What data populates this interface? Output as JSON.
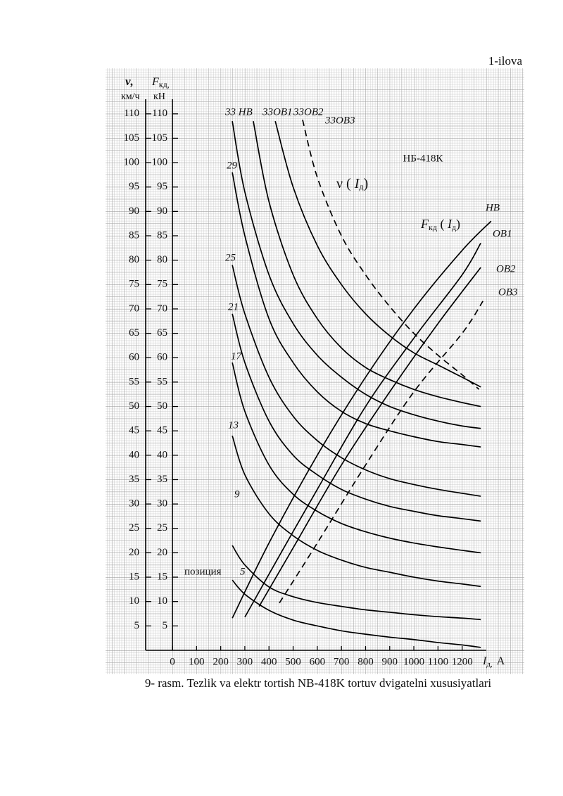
{
  "header": {
    "annex": "1-ilova"
  },
  "caption": "9- rasm. Tezlik va elektr tortish NB-418K tortuv dvigatelni xususiyatlari",
  "chart_data": {
    "type": "line",
    "title": "НБ-418К",
    "ylabel": {
      "symbol": "ν,",
      "unit": "км/ч"
    },
    "y2label": {
      "symbol": "F",
      "sub": "кд,",
      "unit": "кН"
    },
    "xlabel": {
      "symbol": "I",
      "sub": "д,",
      "unit": "A"
    },
    "v_curve_label": {
      "pre": "ν ( ",
      "symbol": "I",
      "sub": "д",
      "post": ")"
    },
    "f_curve_label": {
      "symbol": "F",
      "sub1": "кд",
      "mid": " ( ",
      "symbol2": "I",
      "sub2": "д",
      "post": ")"
    },
    "position_label": "позиция",
    "xlim": [
      0,
      1300
    ],
    "xticks": [
      0,
      100,
      200,
      300,
      400,
      500,
      600,
      700,
      800,
      900,
      1000,
      1100,
      1200
    ],
    "ylim": [
      0,
      113
    ],
    "yticks": [
      5,
      10,
      15,
      20,
      25,
      30,
      35,
      40,
      45,
      50,
      55,
      60,
      65,
      70,
      75,
      80,
      85,
      90,
      95,
      100,
      105,
      110
    ],
    "y2lim": [
      0,
      113
    ],
    "y2ticks": [
      5,
      10,
      15,
      20,
      25,
      30,
      35,
      40,
      45,
      50,
      55,
      60,
      65,
      70,
      75,
      80,
      85,
      90,
      95,
      100,
      105,
      110
    ],
    "grid": true,
    "series": [
      {
        "name": "5",
        "color": "#000",
        "dash": false,
        "x": [
          248,
          300,
          400,
          500,
          600,
          700,
          800,
          900,
          1000,
          1100,
          1200,
          1277
        ],
        "values": [
          14.4,
          11.5,
          8.2,
          6.2,
          5,
          4,
          3.3,
          2.7,
          2.2,
          1.6,
          1.1,
          0.6
        ]
      },
      {
        "name": "9",
        "color": "#000",
        "dash": false,
        "x": [
          248,
          300,
          400,
          500,
          600,
          700,
          800,
          900,
          1000,
          1100,
          1200,
          1277
        ],
        "values": [
          21.5,
          17.5,
          13,
          11,
          9.8,
          9,
          8.3,
          7.8,
          7.3,
          6.9,
          6.6,
          6.3
        ]
      },
      {
        "name": "13",
        "color": "#000",
        "dash": false,
        "x": [
          248,
          300,
          400,
          500,
          600,
          700,
          800,
          900,
          1000,
          1100,
          1200,
          1277
        ],
        "values": [
          44,
          36,
          28,
          23.5,
          20.5,
          18.5,
          17,
          16,
          15,
          14.2,
          13.6,
          13.1
        ]
      },
      {
        "name": "17",
        "color": "#000",
        "dash": false,
        "x": [
          248,
          300,
          400,
          500,
          600,
          700,
          800,
          900,
          1000,
          1100,
          1200,
          1277
        ],
        "values": [
          59,
          49,
          38,
          32,
          28.5,
          26,
          24.3,
          23,
          22,
          21.2,
          20.5,
          20
        ]
      },
      {
        "name": "21",
        "color": "#000",
        "dash": false,
        "x": [
          248,
          300,
          400,
          500,
          600,
          700,
          800,
          900,
          1000,
          1100,
          1200,
          1277
        ],
        "values": [
          69,
          59,
          47,
          40,
          36,
          33,
          31,
          29.5,
          28.5,
          27.6,
          27,
          26.5
        ]
      },
      {
        "name": "25",
        "color": "#000",
        "dash": false,
        "x": [
          248,
          300,
          400,
          500,
          600,
          700,
          800,
          900,
          1000,
          1100,
          1200,
          1277
        ],
        "values": [
          79,
          69,
          56,
          48,
          43,
          39.5,
          37,
          35.2,
          34,
          33,
          32.2,
          31.6
        ]
      },
      {
        "name": "29",
        "color": "#000",
        "dash": false,
        "x": [
          248,
          300,
          400,
          500,
          600,
          700,
          800,
          900,
          1000,
          1100,
          1200,
          1277
        ],
        "values": [
          98,
          85,
          68,
          59,
          53,
          49,
          46.5,
          45,
          43.8,
          42.8,
          42.2,
          41.7
        ]
      },
      {
        "name": "33 НВ",
        "color": "#000",
        "dash": false,
        "x": [
          248,
          300,
          400,
          500,
          600,
          700,
          800,
          900,
          1000,
          1100,
          1200,
          1277
        ],
        "values": [
          108.5,
          94,
          77,
          67,
          60.5,
          56,
          52.5,
          50,
          48.3,
          47,
          46,
          45.5
        ]
      },
      {
        "name": "33ОВ1",
        "color": "#000",
        "dash": false,
        "x": [
          335,
          400,
          500,
          600,
          700,
          800,
          900,
          1000,
          1100,
          1200,
          1277
        ],
        "values": [
          108.5,
          92,
          77,
          68,
          62,
          58,
          55.5,
          53.5,
          52,
          50.8,
          50
        ]
      },
      {
        "name": "33ОВ2",
        "color": "#000",
        "dash": false,
        "x": [
          426,
          500,
          600,
          700,
          800,
          900,
          1000,
          1100,
          1200,
          1277
        ],
        "values": [
          108.5,
          95,
          83,
          75,
          69,
          64.5,
          61,
          58.5,
          56,
          54
        ]
      },
      {
        "name": "33ОВ3",
        "color": "#000",
        "dash": true,
        "x": [
          539,
          600,
          700,
          800,
          900,
          1000,
          1100,
          1200,
          1270
        ],
        "values": [
          108.8,
          97,
          85,
          77,
          70.5,
          65,
          60.5,
          56.5,
          53.5
        ]
      },
      {
        "name": "НВ",
        "color": "#000",
        "dash": false,
        "axis": "y2",
        "x": [
          248,
          400,
          600,
          800,
          1000,
          1200,
          1320
        ],
        "values": [
          6.6,
          22,
          40,
          56,
          70,
          82,
          88
        ]
      },
      {
        "name": "ОВ1",
        "color": "#000",
        "dash": false,
        "axis": "y2",
        "x": [
          300,
          450,
          600,
          800,
          1000,
          1200,
          1277
        ],
        "values": [
          6.8,
          20,
          33,
          50,
          64,
          77,
          83.5
        ]
      },
      {
        "name": "ОВ2",
        "color": "#000",
        "dash": false,
        "axis": "y2",
        "x": [
          359,
          500,
          700,
          900,
          1100,
          1277
        ],
        "values": [
          9,
          21,
          38,
          53,
          67,
          78.5
        ]
      },
      {
        "name": "ОВ3",
        "color": "#000",
        "dash": true,
        "axis": "y2",
        "x": [
          443,
          600,
          800,
          1000,
          1200,
          1286
        ],
        "values": [
          9.7,
          22,
          38,
          53,
          65,
          71.6
        ]
      }
    ]
  }
}
